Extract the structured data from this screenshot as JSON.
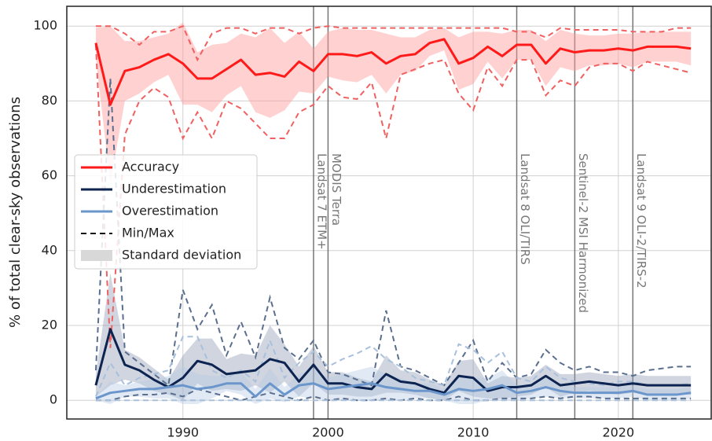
{
  "chart_data": {
    "type": "line",
    "ylabel": "% of total clear-sky observations",
    "x": [
      1984,
      1985,
      1986,
      1987,
      1988,
      1989,
      1990,
      1991,
      1992,
      1993,
      1994,
      1995,
      1996,
      1997,
      1998,
      1999,
      2000,
      2001,
      2002,
      2003,
      2004,
      2005,
      2006,
      2007,
      2008,
      2009,
      2010,
      2011,
      2012,
      2013,
      2014,
      2015,
      2016,
      2017,
      2018,
      2019,
      2020,
      2021,
      2022,
      2023,
      2024,
      2025
    ],
    "xlim": [
      1982,
      2026.4
    ],
    "xticks": [
      1990,
      2000,
      2010,
      2020
    ],
    "ylim": [
      -5,
      105.3
    ],
    "yticks": [
      0,
      20,
      40,
      60,
      80,
      100
    ],
    "grid": true,
    "legend": "center left",
    "minmax_label": "Min/Max",
    "std_label": "Standard deviation",
    "series": [
      {
        "name": "Accuracy",
        "color": "#ff1a1a",
        "band_color": "#ff9a9a",
        "minmax_color": "#f06060",
        "values": [
          95.5,
          79,
          88,
          89,
          91,
          92.5,
          90,
          86,
          86,
          88.5,
          91,
          87,
          87.5,
          86.5,
          90.5,
          88,
          92.5,
          92.5,
          92,
          93,
          90,
          92,
          92.5,
          95.5,
          96.5,
          90,
          91.5,
          94.5,
          92,
          95,
          95,
          90,
          94,
          93,
          93.5,
          93.5,
          94,
          93.5,
          94.5,
          94.5,
          94.5,
          94
        ],
        "std": [
          4,
          21,
          8,
          7,
          6,
          5.5,
          11,
          7,
          9,
          7,
          7,
          10,
          12,
          9,
          8,
          6,
          6,
          7,
          7,
          6,
          8,
          5,
          4.5,
          3.5,
          3,
          7,
          7,
          4,
          6,
          4,
          4,
          6,
          5,
          5,
          4,
          4,
          4,
          4.5,
          4,
          4,
          4,
          4.5
        ],
        "min": [
          95,
          14,
          71,
          80,
          83.5,
          81,
          70,
          77,
          70,
          80,
          78,
          74,
          70,
          70,
          77,
          79,
          84,
          81,
          80.5,
          85,
          70,
          87,
          88.5,
          90,
          91,
          82,
          77.5,
          89,
          84,
          91,
          91,
          81.5,
          85.5,
          84,
          89,
          90,
          90,
          88,
          90.5,
          89.5,
          88.5,
          87.5
        ],
        "max": [
          100,
          100,
          98,
          95,
          98.5,
          98.5,
          100,
          91,
          98,
          99.5,
          99.5,
          98,
          99.5,
          99.5,
          98,
          99.5,
          100,
          99.5,
          99.5,
          99.5,
          99.5,
          99.5,
          99.5,
          99.5,
          99.5,
          99.5,
          99.5,
          99.5,
          99.5,
          98.5,
          98.5,
          97,
          99.5,
          99,
          99,
          99,
          99,
          98.5,
          98.5,
          98.5,
          99.5,
          99.5
        ]
      },
      {
        "name": "Underestimation",
        "color": "#0d2350",
        "band_color": "#8a96b2",
        "minmax_color": "#5a6e8e",
        "values": [
          4,
          19,
          9.5,
          8,
          5.5,
          3.5,
          6,
          10.5,
          9.5,
          7,
          7.5,
          8,
          11,
          10,
          5,
          9.5,
          4.5,
          4.5,
          3.5,
          3,
          7,
          5,
          4.5,
          3,
          2,
          6.5,
          6,
          2.5,
          3.5,
          3.5,
          4,
          6.5,
          4,
          4.5,
          5,
          4.5,
          4,
          4.5,
          4,
          4,
          4,
          4
        ],
        "std": [
          3,
          15,
          4,
          3.5,
          3,
          2,
          6,
          6,
          7,
          4,
          5,
          4,
          9,
          5,
          4,
          5,
          3,
          3,
          2.5,
          2,
          5,
          3,
          3,
          2.5,
          2,
          4,
          5,
          2,
          3,
          2.5,
          2.5,
          3,
          3,
          2.5,
          2.5,
          2.5,
          2.5,
          2.5,
          2.5,
          2.5,
          2.5,
          2.5
        ],
        "min": [
          0,
          0,
          1,
          1.5,
          1.5,
          2,
          1,
          3,
          2,
          1,
          0,
          1,
          2,
          1,
          0,
          1,
          0,
          0.5,
          0,
          0,
          0.5,
          0,
          0.5,
          0,
          0,
          1,
          0,
          0,
          0.5,
          0.5,
          0.5,
          1,
          0.5,
          1,
          1,
          0.5,
          0.5,
          0.5,
          0.5,
          0.5,
          0.5,
          0.5
        ],
        "max": [
          8,
          86,
          13,
          10,
          7,
          4,
          29.5,
          19,
          25.5,
          12,
          21,
          11.5,
          27.5,
          14,
          11,
          16,
          7.5,
          7,
          5.5,
          4,
          24,
          9,
          8,
          6,
          4,
          10,
          16,
          5,
          10,
          6,
          7,
          13.5,
          10,
          8,
          9,
          7.5,
          7.5,
          6.5,
          8,
          8.5,
          9,
          9
        ]
      },
      {
        "name": "Overestimation",
        "color": "#6b96cb",
        "band_color": "#b4c8e4",
        "minmax_color": "#a8c0dc",
        "values": [
          0.5,
          2,
          2.5,
          3,
          3,
          3.5,
          4,
          3,
          3.5,
          4.5,
          4.5,
          1,
          4.5,
          1.5,
          4,
          4.5,
          3,
          3.5,
          4,
          4.5,
          3.5,
          3,
          2.5,
          2.5,
          1.5,
          3,
          2.5,
          3,
          4,
          2,
          2.5,
          3.5,
          2.5,
          2,
          2,
          2,
          2,
          2.5,
          1.5,
          1.5,
          1.5,
          2
        ],
        "std": [
          0.5,
          3,
          1.5,
          2,
          2.5,
          3,
          5,
          4,
          3,
          2,
          3,
          2,
          4,
          2,
          3,
          4,
          3,
          3.5,
          4,
          4.5,
          3.5,
          3,
          2,
          2,
          1.5,
          4,
          3.5,
          3,
          4,
          2,
          2,
          2.5,
          2,
          1.5,
          1.5,
          1.5,
          1.5,
          1.5,
          1.5,
          1.5,
          1.5,
          1.5
        ],
        "min": [
          0,
          0,
          0,
          0,
          0,
          0,
          0,
          0,
          0,
          0,
          0,
          0,
          0,
          0,
          0,
          0,
          0,
          0,
          0,
          0,
          0,
          0,
          0,
          0,
          0,
          0,
          0,
          0,
          0,
          0,
          0,
          0,
          0,
          0,
          0,
          0,
          0,
          0,
          0,
          0,
          0,
          0
        ],
        "max": [
          1,
          10,
          4,
          6,
          7,
          8,
          17,
          17,
          8,
          6,
          8,
          5,
          16,
          6,
          10,
          13,
          9,
          11,
          12.5,
          14.5,
          11,
          9,
          6,
          5,
          4,
          15,
          13.5,
          10,
          13,
          6,
          5,
          9,
          6,
          5,
          4.5,
          4,
          5,
          5,
          4,
          4,
          4,
          4.5
        ]
      }
    ],
    "events": [
      {
        "x": 1999,
        "label": "Landsat 7 ETM+"
      },
      {
        "x": 2000,
        "label": "MODIS Terra"
      },
      {
        "x": 2013,
        "label": "Landsat 8 OLI/TIRS"
      },
      {
        "x": 2017,
        "label": "Sentinel-2 MSI Harmonized"
      },
      {
        "x": 2021,
        "label": "Landsat 9 OLI-2/TIRS-2"
      }
    ]
  }
}
